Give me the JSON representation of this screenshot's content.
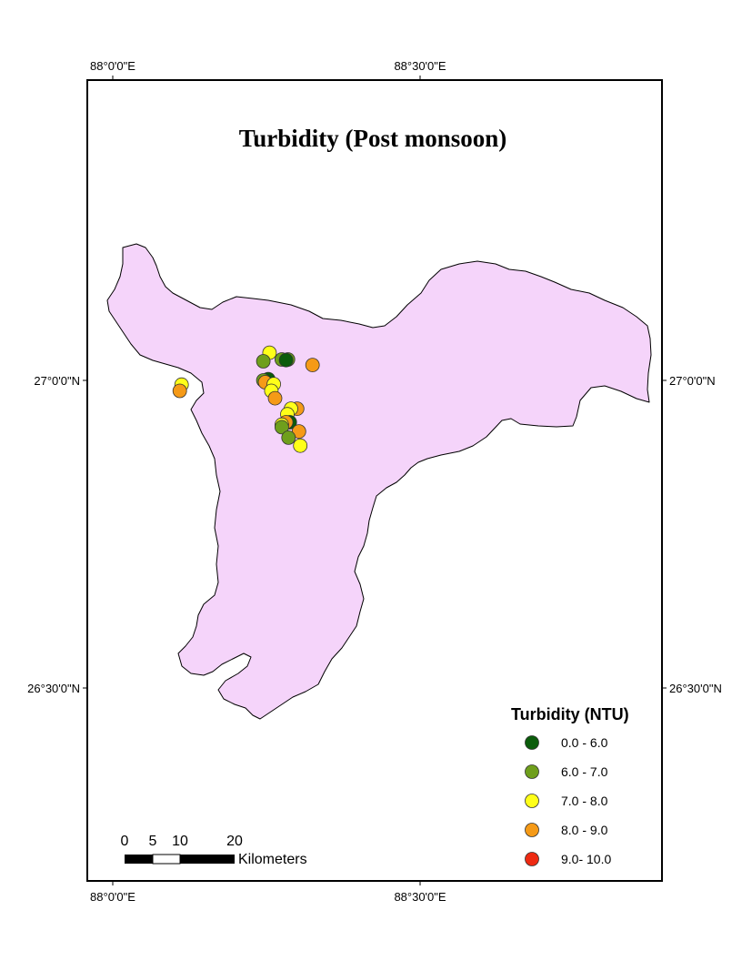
{
  "map": {
    "title": "Turbidity (Post monsoon)",
    "graticule": {
      "top_labels": [
        "88°0'0\"E",
        "88°30'0\"E"
      ],
      "bottom_labels": [
        "88°0'0\"E",
        "88°30'0\"E"
      ],
      "left_labels": [
        "27°0'0\"N",
        "26°30'0\"N"
      ],
      "right_labels": [
        "27°0'0\"N",
        "26°30'0\"N"
      ]
    },
    "region_fill": "#f5d4fa",
    "legend": {
      "title": "Turbidity (NTU)",
      "classes": [
        {
          "label": "0.0 - 6.0",
          "color": "#0b5c0b"
        },
        {
          "label": "6.0 - 7.0",
          "color": "#6f9f1c"
        },
        {
          "label": "7.0 - 8.0",
          "color": "#ffff19"
        },
        {
          "label": "8.0 - 9.0",
          "color": "#f59a17"
        },
        {
          "label": "9.0- 10.0",
          "color": "#ee2a12"
        }
      ]
    },
    "scale_bar": {
      "ticks": [
        "0",
        "5",
        "10",
        "20"
      ],
      "unit": "Kilometers"
    },
    "sample_points": [
      {
        "lon": 88.255,
        "lat": 27.045,
        "class": 2
      },
      {
        "lon": 88.275,
        "lat": 27.034,
        "class": 1
      },
      {
        "lon": 88.285,
        "lat": 27.034,
        "class": 1
      },
      {
        "lon": 88.282,
        "lat": 27.033,
        "class": 0
      },
      {
        "lon": 88.245,
        "lat": 27.031,
        "class": 1
      },
      {
        "lon": 88.325,
        "lat": 27.025,
        "class": 3
      },
      {
        "lon": 88.253,
        "lat": 27.002,
        "class": 0
      },
      {
        "lon": 88.245,
        "lat": 27.0,
        "class": 1
      },
      {
        "lon": 88.248,
        "lat": 26.997,
        "class": 3
      },
      {
        "lon": 88.262,
        "lat": 26.994,
        "class": 2
      },
      {
        "lon": 88.258,
        "lat": 26.983,
        "class": 2
      },
      {
        "lon": 88.264,
        "lat": 26.971,
        "class": 3
      },
      {
        "lon": 88.112,
        "lat": 26.993,
        "class": 2
      },
      {
        "lon": 88.109,
        "lat": 26.983,
        "class": 3
      },
      {
        "lon": 88.3,
        "lat": 26.954,
        "class": 3
      },
      {
        "lon": 88.29,
        "lat": 26.954,
        "class": 2
      },
      {
        "lon": 88.284,
        "lat": 26.945,
        "class": 2
      },
      {
        "lon": 88.288,
        "lat": 26.932,
        "class": 0
      },
      {
        "lon": 88.282,
        "lat": 26.932,
        "class": 3
      },
      {
        "lon": 88.275,
        "lat": 26.928,
        "class": 2
      },
      {
        "lon": 88.275,
        "lat": 26.924,
        "class": 1
      },
      {
        "lon": 88.303,
        "lat": 26.917,
        "class": 3
      },
      {
        "lon": 88.286,
        "lat": 26.907,
        "class": 1
      },
      {
        "lon": 88.305,
        "lat": 26.894,
        "class": 2
      }
    ]
  }
}
